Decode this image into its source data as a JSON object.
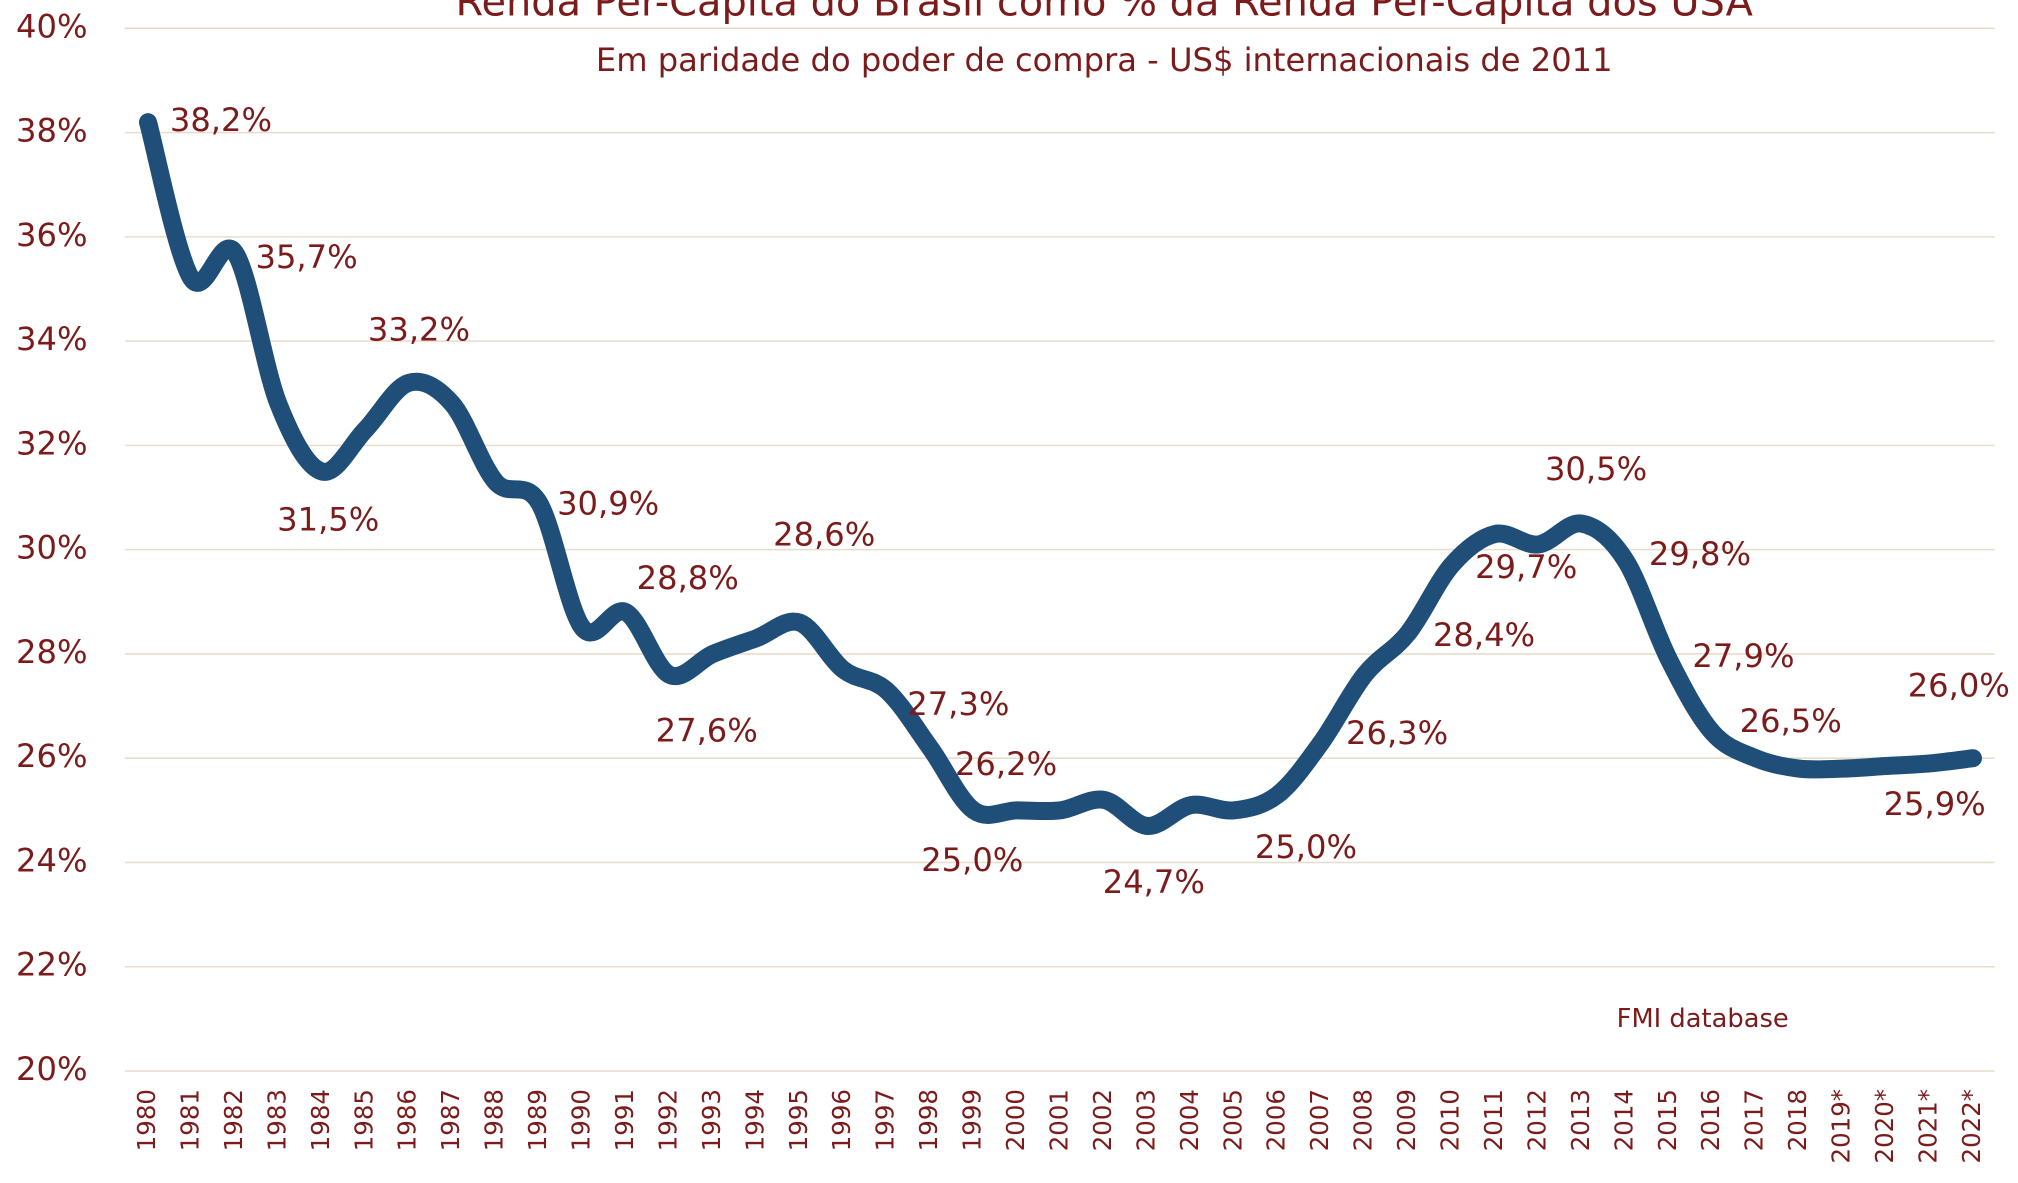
{
  "chart_data": {
    "type": "line",
    "title": "Renda Per-Capita do Brasil como % da Renda Per-Capita dos USA",
    "subtitle": "Em paridade do poder de compra - US$ internacionais de 2011",
    "annotation": "FMI database",
    "categories": [
      "1980",
      "1981",
      "1982",
      "1983",
      "1984",
      "1985",
      "1986",
      "1987",
      "1988",
      "1989",
      "1990",
      "1991",
      "1992",
      "1993",
      "1994",
      "1995",
      "1996",
      "1997",
      "1998",
      "1999",
      "2000",
      "2001",
      "2002",
      "2003",
      "2004",
      "2005",
      "2006",
      "2007",
      "2008",
      "2009",
      "2010",
      "2011",
      "2012",
      "2013",
      "2014",
      "2015",
      "2016",
      "2017",
      "2018",
      "2019*",
      "2020*",
      "2021*",
      "2022*"
    ],
    "series": [
      {
        "name": "Renda Per-Capita do Brasil como % da Renda Per-Capita dos USA",
        "color": "#1f4e79",
        "values": [
          38.2,
          35.2,
          35.7,
          32.8,
          31.5,
          32.3,
          33.2,
          32.8,
          31.3,
          30.9,
          28.5,
          28.8,
          27.6,
          28.0,
          28.3,
          28.6,
          27.7,
          27.3,
          26.2,
          25.0,
          25.0,
          25.0,
          25.2,
          24.7,
          25.1,
          25.0,
          25.3,
          26.3,
          27.6,
          28.4,
          29.7,
          30.3,
          30.1,
          30.5,
          29.8,
          27.9,
          26.5,
          26.0,
          25.8,
          25.8,
          25.85,
          25.9,
          26.0
        ],
        "value_labels": [
          "38,2%",
          null,
          "35,7%",
          null,
          "31,5%",
          null,
          "33,2%",
          null,
          null,
          "30,9%",
          null,
          "28,8%",
          "27,6%",
          null,
          null,
          "28,6%",
          null,
          "27,3%",
          "26,2%",
          "25,0%",
          null,
          null,
          null,
          "24,7%",
          null,
          "25,0%",
          null,
          "26,3%",
          null,
          "28,4%",
          "29,7%",
          null,
          null,
          "30,5%",
          "29,8%",
          "27,9%",
          "26,5%",
          null,
          null,
          null,
          null,
          "25,9%",
          "26,0%"
        ]
      }
    ],
    "ylim": [
      20,
      40
    ],
    "yticks": [
      {
        "value": 20,
        "label": "20%"
      },
      {
        "value": 22,
        "label": "22%"
      },
      {
        "value": 24,
        "label": "24%"
      },
      {
        "value": 26,
        "label": "26%"
      },
      {
        "value": 28,
        "label": "28%"
      },
      {
        "value": 30,
        "label": "30%"
      },
      {
        "value": 32,
        "label": "32%"
      },
      {
        "value": 34,
        "label": "34%"
      },
      {
        "value": 36,
        "label": "36%"
      },
      {
        "value": 38,
        "label": "38%"
      },
      {
        "value": 40,
        "label": "40%"
      }
    ],
    "grid": true
  }
}
